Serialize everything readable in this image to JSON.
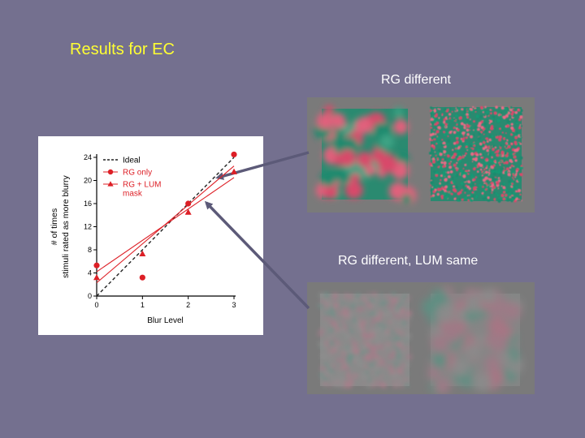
{
  "slide": {
    "title": "Results for EC",
    "label_top": "RG different",
    "label_bottom": "RG different,  LUM same"
  },
  "colors": {
    "background": "#74708f",
    "title": "#ffff33",
    "series_red": "#dd1f26",
    "ideal": "#222222",
    "arrow": "#5c5a78",
    "stim_red": "#d84a6a",
    "stim_green": "#1f8a6e",
    "stim_gray": "#7a7a7a"
  },
  "chart_data": {
    "type": "scatter",
    "xlabel": "Blur Level",
    "ylabel": "# of times\nstimuli rated as more blurry",
    "xticks": [
      0,
      1,
      2,
      3
    ],
    "yticks": [
      0,
      4,
      8,
      12,
      16,
      20,
      24
    ],
    "xlim": [
      0,
      3
    ],
    "ylim": [
      0,
      24
    ],
    "legend_position": "top-left",
    "series": [
      {
        "name": "Ideal",
        "kind": "line",
        "style": "dashed",
        "color": "#222222",
        "x": [
          0,
          3
        ],
        "y": [
          0,
          24
        ]
      },
      {
        "name": "RG only",
        "marker": "circle",
        "color": "#dd1f26",
        "x": [
          0,
          1,
          2,
          3
        ],
        "y": [
          5.3,
          3.2,
          16,
          24.5
        ],
        "fit": {
          "x": [
            0,
            3
          ],
          "y": [
            2.3,
            22.5
          ]
        }
      },
      {
        "name": "RG + LUM\nmask",
        "marker": "triangle",
        "color": "#dd1f26",
        "x": [
          0,
          1,
          2,
          3
        ],
        "y": [
          3.2,
          7.3,
          14.5,
          21.5
        ],
        "fit": {
          "x": [
            0,
            3
          ],
          "y": [
            4.2,
            20.5
          ]
        }
      }
    ]
  }
}
